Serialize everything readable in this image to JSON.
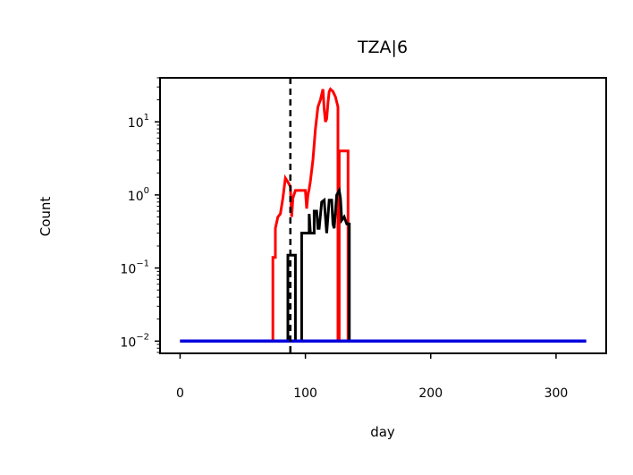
{
  "chart_data": {
    "type": "line",
    "title": "TZA|6",
    "xlabel": "day",
    "ylabel": "Count",
    "yscale": "log",
    "xlim": [
      -16,
      340
    ],
    "ylim": [
      0.0068,
      40
    ],
    "x_ticks": [
      0,
      100,
      200,
      300
    ],
    "x_tick_labels": [
      "0",
      "100",
      "200",
      "300"
    ],
    "y_ticks": [
      0.01,
      0.1,
      1,
      10
    ],
    "y_tick_labels": [
      {
        "base": "10",
        "exp": "−2"
      },
      {
        "base": "10",
        "exp": "−1"
      },
      {
        "base": "10",
        "exp": "0"
      },
      {
        "base": "10",
        "exp": "1"
      }
    ],
    "grid": false,
    "legend": "none",
    "vline": {
      "x": 88,
      "style": "dashed",
      "color": "#000000"
    },
    "series": [
      {
        "color": "#ff0000",
        "points": [
          [
            0,
            0.01
          ],
          [
            74,
            0.01
          ],
          [
            74,
            0.14
          ],
          [
            76,
            0.14
          ],
          [
            76,
            0.35
          ],
          [
            78,
            0.5
          ],
          [
            80,
            0.55
          ],
          [
            82,
            0.9
          ],
          [
            84,
            1.7
          ],
          [
            86,
            1.5
          ],
          [
            88,
            1.3
          ],
          [
            89,
            0.5
          ],
          [
            90,
            0.9
          ],
          [
            92,
            1.15
          ],
          [
            95,
            1.15
          ],
          [
            97,
            1.15
          ],
          [
            100,
            1.15
          ],
          [
            101,
            0.65
          ],
          [
            102,
            1.0
          ],
          [
            103,
            1.2
          ],
          [
            104,
            1.55
          ],
          [
            106,
            3.0
          ],
          [
            108,
            8.0
          ],
          [
            110,
            16
          ],
          [
            112,
            20
          ],
          [
            114,
            28
          ],
          [
            115,
            15
          ],
          [
            116,
            10
          ],
          [
            117,
            11
          ],
          [
            118,
            18
          ],
          [
            119,
            26
          ],
          [
            120,
            28
          ],
          [
            122,
            26
          ],
          [
            124,
            22
          ],
          [
            126,
            16
          ],
          [
            126,
            0.01
          ],
          [
            127,
            0.01
          ],
          [
            127,
            4.0
          ],
          [
            131,
            4.0
          ],
          [
            134,
            4.0
          ],
          [
            134,
            0.01
          ],
          [
            324,
            0.01
          ]
        ]
      },
      {
        "color": "#000000",
        "points": [
          [
            0,
            0.01
          ],
          [
            86,
            0.01
          ],
          [
            86,
            0.15
          ],
          [
            88,
            0.15
          ],
          [
            92,
            0.15
          ],
          [
            92,
            0.01
          ],
          [
            97,
            0.01
          ],
          [
            97,
            0.3
          ],
          [
            101,
            0.3
          ],
          [
            103,
            0.3
          ],
          [
            103,
            0.55
          ],
          [
            104,
            0.3
          ],
          [
            107,
            0.3
          ],
          [
            107,
            0.6
          ],
          [
            109,
            0.6
          ],
          [
            110,
            0.35
          ],
          [
            111,
            0.35
          ],
          [
            113,
            0.8
          ],
          [
            115,
            0.85
          ],
          [
            116,
            0.5
          ],
          [
            117,
            0.3
          ],
          [
            119,
            0.85
          ],
          [
            121,
            0.85
          ],
          [
            122,
            0.4
          ],
          [
            123,
            0.35
          ],
          [
            125,
            1.0
          ],
          [
            127,
            1.15
          ],
          [
            128,
            0.9
          ],
          [
            129,
            0.45
          ],
          [
            131,
            0.5
          ],
          [
            133,
            0.4
          ],
          [
            135,
            0.4
          ],
          [
            135,
            0.01
          ],
          [
            324,
            0.01
          ]
        ]
      },
      {
        "color": "#0000dd",
        "points": [
          [
            0,
            0.01
          ],
          [
            324,
            0.01
          ]
        ]
      }
    ]
  }
}
